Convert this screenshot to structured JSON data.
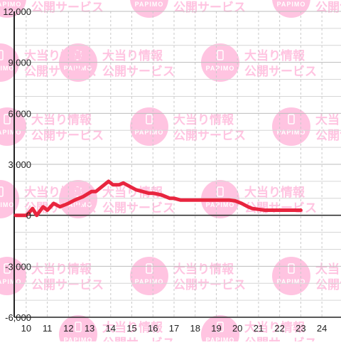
{
  "colors": {
    "line": "#e8253f",
    "grid": "#c9c9c9",
    "axis": "#222222",
    "watermark": "#ffc4e1"
  },
  "watermark": {
    "logo": "PAPIMO",
    "line1": "大当り情報",
    "line2": "公開サービス"
  },
  "chart_data": {
    "type": "line",
    "xlim": [
      9.5,
      24.5
    ],
    "ylim": [
      -6000,
      12000
    ],
    "x_ticks": [
      10,
      11,
      12,
      13,
      14,
      15,
      16,
      17,
      18,
      19,
      20,
      21,
      22,
      23,
      24
    ],
    "x_tick_labels": [
      "10",
      "11",
      "12",
      "13",
      "14",
      "15",
      "16",
      "17",
      "18",
      "19",
      "20",
      "21",
      "22",
      "23",
      "24"
    ],
    "y_ticks": [
      -6000,
      -3000,
      0,
      3000,
      6000,
      9000,
      12000
    ],
    "y_tick_labels": [
      "-6,000",
      "-3,000",
      "0",
      "3,000",
      "6,000",
      "9,000",
      "12,000"
    ],
    "grid": true,
    "series": [
      {
        "x": [
          9.5,
          10.0,
          10.1,
          10.3,
          10.5,
          10.8,
          11.0,
          11.3,
          11.6,
          12.0,
          12.3,
          12.7,
          13.1,
          13.3,
          13.6,
          13.9,
          14.1,
          14.4,
          14.6,
          14.9,
          15.2,
          15.5,
          15.8,
          16.0,
          16.4,
          16.8,
          17.0,
          17.3,
          17.6,
          18.0,
          18.4,
          18.8,
          19.2,
          19.6,
          19.9,
          20.2,
          20.5,
          20.7,
          21.0,
          21.3,
          21.6,
          22.0,
          22.5,
          23.0
        ],
        "y": [
          0,
          0,
          100,
          400,
          0,
          500,
          300,
          700,
          500,
          700,
          900,
          1100,
          1400,
          1400,
          1700,
          2000,
          1800,
          1800,
          1900,
          1700,
          1500,
          1400,
          1300,
          1300,
          1200,
          1000,
          1000,
          900,
          900,
          900,
          900,
          900,
          900,
          900,
          850,
          700,
          500,
          400,
          350,
          300,
          300,
          300,
          300,
          300
        ]
      }
    ]
  }
}
